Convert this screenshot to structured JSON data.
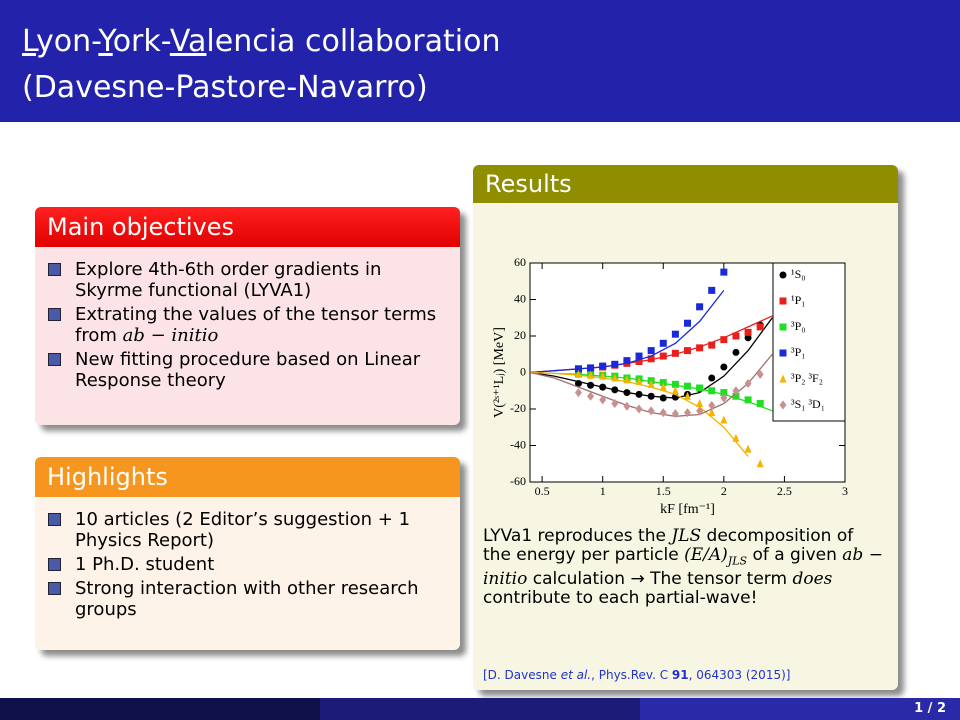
{
  "header": {
    "title": [
      "L",
      "yon-",
      "Y",
      "ork-",
      "Va",
      "lencia collaboration"
    ],
    "subtitle": "(Davesne-Pastore-Navarro)"
  },
  "objectives": {
    "title": "Main objectives",
    "items": [
      [
        "Explore 4th-6th order gradients in Skyrme functional (LYVA1)"
      ],
      [
        "Extrating the values of the tensor terms from ",
        "ab − initio"
      ],
      [
        "New fitting procedure based on Linear Response theory"
      ]
    ]
  },
  "highlights": {
    "title": "Highlights",
    "items": [
      "10 articles (2 Editor’s suggestion + 1 Physics Report)",
      "1 Ph.D. student",
      "Strong interaction with other research groups"
    ]
  },
  "results": {
    "title": "Results",
    "text": [
      "LYVa1 reproduces the ",
      "JLS",
      " decomposition of the energy per particle ",
      "(E/A)",
      "JLS",
      " of a given ",
      "ab − initio",
      " calculation → The tensor term ",
      "does",
      " contribute to each partial-wave!"
    ],
    "reference": [
      "[D. Davesne ",
      "et al.",
      ", Phys.Rev. C ",
      "91",
      ", 064303 (2015)]"
    ]
  },
  "chart_data": {
    "type": "scatter",
    "x_label": "kF [fm⁻¹]",
    "y_label": "V(²ˢ⁺¹Lⱼ) [MeV]",
    "xlim": [
      0.4,
      3
    ],
    "ylim": [
      -60,
      60
    ],
    "xticks": [
      0.5,
      1,
      1.5,
      2,
      2.5,
      3
    ],
    "yticks": [
      -60,
      -40,
      -20,
      0,
      20,
      40,
      60
    ],
    "x": [
      0.8,
      0.9,
      1.0,
      1.1,
      1.2,
      1.3,
      1.4,
      1.5,
      1.6,
      1.7,
      1.8,
      1.9,
      2.0,
      2.1,
      2.2,
      2.3
    ],
    "curve_x": [
      0.4,
      0.6,
      0.8,
      1.0,
      1.2,
      1.4,
      1.6,
      1.8,
      2.0,
      2.2,
      2.4
    ],
    "series": [
      {
        "name": "¹S₀",
        "color": "#000000",
        "curve_color": "#000000",
        "marker": "circle",
        "values": [
          -6,
          -7,
          -8,
          -9.5,
          -11,
          -12,
          -13,
          -14,
          -13.5,
          -12,
          -9,
          -3,
          3,
          11,
          19,
          26
        ],
        "curve": [
          0,
          -2,
          -5,
          -8,
          -11,
          -13,
          -14,
          -11,
          -2,
          12,
          30
        ]
      },
      {
        "name": "¹P₁",
        "color": "#e8201c",
        "curve_color": "#e8201c",
        "marker": "square",
        "values": [
          2,
          2.5,
          3,
          4,
          5,
          6,
          7.5,
          9,
          10.5,
          12,
          13.5,
          15,
          18,
          20,
          22,
          25
        ],
        "curve": [
          0,
          1,
          2,
          3,
          5,
          7,
          10,
          14,
          19,
          25,
          31
        ]
      },
      {
        "name": "³P₀",
        "color": "#22dd22",
        "curve_color": "#22dd22",
        "marker": "square",
        "values": [
          -0.5,
          -1,
          -1.5,
          -2,
          -3,
          -3.5,
          -4.5,
          -5.5,
          -6.5,
          -7.5,
          -8.5,
          -10,
          -11,
          -13,
          -15,
          -17
        ],
        "curve": [
          0,
          -0.5,
          -1,
          -2,
          -3,
          -5,
          -7,
          -9,
          -12,
          -16,
          -21
        ]
      },
      {
        "name": "³P₁",
        "color": "#1a2ad8",
        "curve_color": "#1a2ad8",
        "marker": "square",
        "values": [
          2,
          2.5,
          3.5,
          4.5,
          6.5,
          9,
          12,
          16,
          21,
          27,
          36,
          45,
          55,
          null,
          null,
          null
        ],
        "curve": [
          0,
          1,
          2,
          3,
          5,
          9,
          16,
          28,
          45,
          null,
          null
        ]
      },
      {
        "name": "³P₂ ³F₂",
        "color": "#f5b400",
        "curve_color": "#f5b400",
        "marker": "triangle",
        "values": [
          -1,
          -1.5,
          -2,
          -3,
          -4,
          -5,
          -6.5,
          -8,
          -10,
          -13,
          -17,
          -22,
          -26,
          -36,
          -42,
          -50
        ],
        "curve": [
          0,
          -0.5,
          -1.5,
          -3,
          -5,
          -8,
          -12,
          -19,
          -30,
          -46,
          null
        ]
      },
      {
        "name": "³S₁ ³D₁",
        "color": "#c89090",
        "curve_color": "#a07070",
        "marker": "diamond",
        "values": [
          -11,
          -13,
          -15,
          -17,
          -18.5,
          -20,
          -21,
          -22,
          -22.5,
          -22,
          -21,
          -18,
          -14,
          -10,
          -6,
          -1
        ],
        "curve": [
          0,
          -3,
          -8,
          -13,
          -18,
          -22,
          -24,
          -23,
          -17,
          -6,
          10
        ]
      }
    ]
  },
  "footer": {
    "page": "1 / 2"
  }
}
